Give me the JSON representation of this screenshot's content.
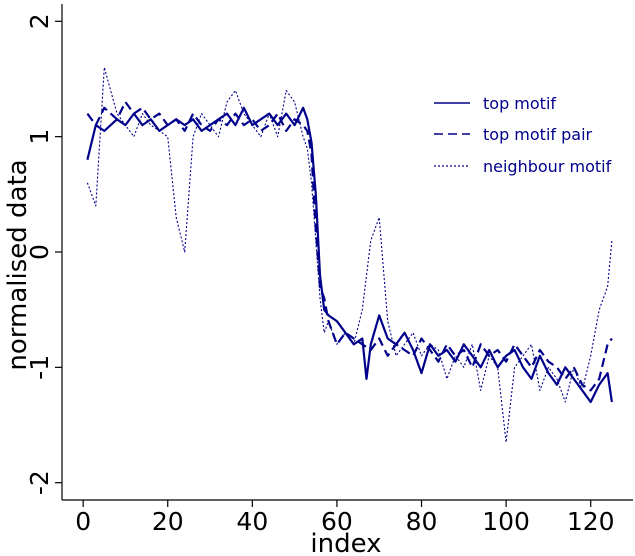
{
  "chart_data": {
    "type": "line",
    "title": "",
    "xlabel": "index",
    "ylabel": "normalised data",
    "xlim": [
      -5,
      130
    ],
    "ylim": [
      -2.15,
      2.15
    ],
    "xticks": [
      0,
      20,
      40,
      60,
      80,
      100,
      120
    ],
    "yticks": [
      -2,
      -1,
      0,
      1,
      2
    ],
    "xtick_labels": [
      "0",
      "20",
      "40",
      "60",
      "80",
      "100",
      "120"
    ],
    "ytick_labels": [
      "-2",
      "-1",
      "0",
      "1",
      "2"
    ],
    "legend": {
      "position": "top-right",
      "entries": [
        "top motif",
        "top motif pair",
        "neighbour motif"
      ]
    },
    "color": "#00008b",
    "series": [
      {
        "name": "top motif",
        "style": "solid",
        "x": [
          1,
          3,
          5,
          8,
          10,
          12,
          14,
          16,
          18,
          20,
          22,
          24,
          26,
          28,
          30,
          32,
          34,
          36,
          38,
          40,
          42,
          44,
          46,
          48,
          50,
          52,
          53,
          54,
          55,
          56,
          57,
          58,
          60,
          62,
          64,
          66,
          67,
          68,
          70,
          72,
          74,
          76,
          78,
          80,
          82,
          84,
          86,
          88,
          90,
          92,
          94,
          96,
          98,
          100,
          102,
          104,
          106,
          108,
          110,
          112,
          114,
          116,
          118,
          120,
          122,
          124,
          125
        ],
        "y": [
          0.8,
          1.1,
          1.05,
          1.15,
          1.1,
          1.2,
          1.1,
          1.15,
          1.05,
          1.1,
          1.15,
          1.1,
          1.15,
          1.05,
          1.1,
          1.15,
          1.2,
          1.1,
          1.25,
          1.1,
          1.15,
          1.2,
          1.1,
          1.2,
          1.1,
          1.25,
          1.15,
          0.95,
          0.5,
          -0.2,
          -0.5,
          -0.55,
          -0.6,
          -0.7,
          -0.8,
          -0.75,
          -1.1,
          -0.8,
          -0.55,
          -0.75,
          -0.8,
          -0.7,
          -0.85,
          -1.05,
          -0.8,
          -0.9,
          -0.85,
          -0.95,
          -0.8,
          -0.9,
          -1.0,
          -0.85,
          -1.0,
          -0.9,
          -0.85,
          -1.0,
          -1.1,
          -0.9,
          -1.05,
          -1.15,
          -1.0,
          -1.1,
          -1.2,
          -1.3,
          -1.15,
          -1.05,
          -1.3
        ]
      },
      {
        "name": "top motif pair",
        "style": "dashed",
        "x": [
          1,
          3,
          5,
          8,
          10,
          12,
          14,
          16,
          18,
          20,
          22,
          24,
          26,
          28,
          30,
          32,
          34,
          36,
          38,
          40,
          42,
          44,
          46,
          48,
          50,
          52,
          53,
          54,
          55,
          56,
          57,
          58,
          60,
          62,
          64,
          66,
          68,
          70,
          72,
          74,
          76,
          78,
          80,
          82,
          84,
          86,
          88,
          90,
          92,
          94,
          96,
          98,
          100,
          102,
          104,
          106,
          108,
          110,
          112,
          114,
          116,
          118,
          120,
          122,
          124,
          125
        ],
        "y": [
          1.2,
          1.1,
          1.25,
          1.15,
          1.3,
          1.2,
          1.25,
          1.15,
          1.2,
          1.1,
          1.15,
          1.05,
          1.2,
          1.1,
          1.05,
          1.15,
          1.1,
          1.2,
          1.1,
          1.15,
          1.05,
          1.1,
          1.2,
          1.05,
          1.15,
          1.1,
          1.05,
          0.85,
          0.2,
          -0.3,
          -0.4,
          -0.6,
          -0.8,
          -0.7,
          -0.75,
          -0.8,
          -0.85,
          -0.75,
          -0.9,
          -0.8,
          -0.85,
          -0.9,
          -0.75,
          -0.85,
          -0.95,
          -0.8,
          -0.9,
          -0.85,
          -1.0,
          -0.8,
          -0.9,
          -0.85,
          -0.95,
          -0.8,
          -0.9,
          -1.0,
          -0.85,
          -0.95,
          -1.0,
          -1.1,
          -1.0,
          -1.15,
          -1.2,
          -1.1,
          -0.8,
          -0.75
        ]
      },
      {
        "name": "neighbour motif",
        "style": "dotted",
        "x": [
          1,
          3,
          5,
          8,
          10,
          12,
          14,
          16,
          18,
          20,
          22,
          24,
          26,
          28,
          30,
          32,
          34,
          36,
          38,
          40,
          42,
          44,
          46,
          48,
          50,
          52,
          53,
          54,
          55,
          56,
          57,
          58,
          60,
          62,
          64,
          66,
          68,
          70,
          72,
          74,
          76,
          78,
          80,
          82,
          84,
          86,
          88,
          90,
          92,
          94,
          96,
          98,
          100,
          102,
          104,
          106,
          108,
          110,
          112,
          114,
          116,
          118,
          120,
          122,
          124,
          125
        ],
        "y": [
          0.6,
          0.4,
          1.6,
          1.2,
          1.1,
          1.0,
          1.2,
          1.1,
          1.05,
          1.0,
          0.3,
          0.0,
          1.0,
          1.2,
          1.1,
          1.0,
          1.3,
          1.4,
          1.2,
          1.1,
          1.0,
          1.2,
          1.0,
          1.4,
          1.3,
          1.0,
          0.9,
          0.6,
          0.1,
          -0.4,
          -0.7,
          -0.6,
          -0.8,
          -0.7,
          -0.8,
          -0.5,
          0.1,
          0.3,
          -0.6,
          -0.9,
          -0.8,
          -0.7,
          -0.9,
          -0.8,
          -0.85,
          -1.1,
          -0.9,
          -1.0,
          -0.8,
          -1.2,
          -0.9,
          -1.0,
          -1.65,
          -1.0,
          -0.9,
          -0.8,
          -1.2,
          -1.0,
          -1.1,
          -1.3,
          -1.0,
          -1.2,
          -0.9,
          -0.5,
          -0.3,
          0.1
        ]
      }
    ]
  }
}
